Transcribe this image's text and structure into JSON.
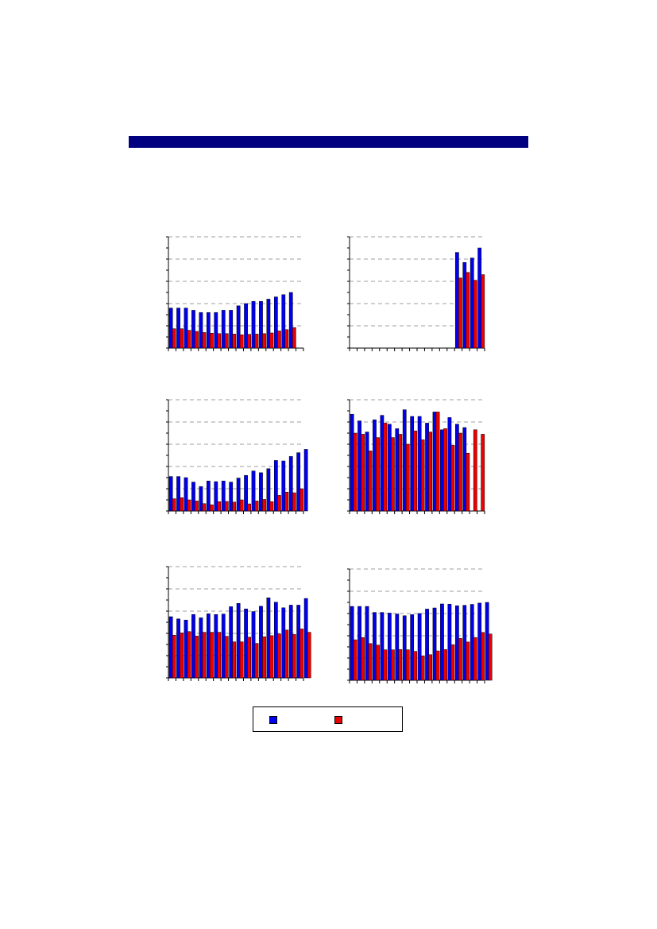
{
  "colors": {
    "series_1": "#0000ee",
    "series_2": "#ee0000",
    "title_bar": "#000080",
    "grid": "#808080"
  },
  "legend": {
    "items": [
      {
        "color": "#0000ee",
        "label": ""
      },
      {
        "color": "#ee0000",
        "label": ""
      }
    ]
  },
  "chart_data": [
    {
      "type": "bar",
      "grid": true,
      "ylim": [
        0,
        5
      ],
      "xticks": 19,
      "series": [
        {
          "values": [
            1.8,
            1.8,
            1.8,
            1.7,
            1.6,
            1.6,
            1.6,
            1.7,
            1.7,
            1.9,
            2.0,
            2.1,
            2.1,
            2.2,
            2.3,
            2.4,
            2.5
          ]
        },
        {
          "values": [
            0.87,
            0.87,
            0.8,
            0.75,
            0.7,
            0.67,
            0.65,
            0.65,
            0.63,
            0.6,
            0.62,
            0.63,
            0.65,
            0.68,
            0.77,
            0.83,
            0.92
          ]
        }
      ]
    },
    {
      "type": "bar",
      "grid": true,
      "ylim": [
        0,
        5
      ],
      "xticks": 19,
      "series": [
        {
          "values": [
            0,
            0,
            0,
            0,
            0,
            0,
            0,
            0,
            0,
            0,
            0,
            0,
            0,
            0,
            4.3,
            3.85,
            4.05,
            4.5
          ]
        },
        {
          "values": [
            0,
            0,
            0,
            0,
            0,
            0,
            0,
            0,
            0,
            0,
            0,
            0,
            0,
            0,
            3.15,
            3.4,
            3.05,
            3.3
          ]
        }
      ]
    },
    {
      "type": "bar",
      "grid": true,
      "ylim": [
        0,
        5
      ],
      "xticks": 19,
      "series": [
        {
          "values": [
            1.55,
            1.55,
            1.5,
            1.3,
            1.1,
            1.35,
            1.32,
            1.35,
            1.3,
            1.48,
            1.6,
            1.8,
            1.72,
            1.9,
            2.27,
            2.25,
            2.45,
            2.62,
            2.77
          ]
        },
        {
          "values": [
            0.55,
            0.6,
            0.5,
            0.45,
            0.33,
            0.28,
            0.42,
            0.43,
            0.4,
            0.5,
            0.32,
            0.45,
            0.52,
            0.42,
            0.7,
            0.85,
            0.82,
            1.0
          ]
        }
      ]
    },
    {
      "type": "bar",
      "grid": true,
      "ylim": [
        0,
        5
      ],
      "xticks": 19,
      "series": [
        {
          "values": [
            4.35,
            4.05,
            3.55,
            4.1,
            4.3,
            3.9,
            3.7,
            4.55,
            4.25,
            4.25,
            3.95,
            4.45,
            3.65,
            4.2,
            3.9,
            3.75
          ]
        },
        {
          "values": [
            3.5,
            3.45,
            2.7,
            3.3,
            3.95,
            3.3,
            3.45,
            3.0,
            3.6,
            3.2,
            3.55,
            4.45,
            3.7,
            2.95,
            3.5,
            2.6,
            3.65,
            3.45
          ]
        }
      ]
    },
    {
      "type": "bar",
      "grid": true,
      "ylim": [
        0,
        5
      ],
      "xticks": 19,
      "series": [
        {
          "values": [
            2.75,
            2.65,
            2.6,
            2.85,
            2.7,
            2.88,
            2.85,
            2.87,
            3.2,
            3.35,
            3.1,
            2.98,
            3.22,
            3.6,
            3.4,
            3.15,
            3.27,
            3.27,
            3.57
          ]
        },
        {
          "values": [
            1.92,
            2.02,
            2.08,
            1.88,
            2.05,
            2.05,
            2.05,
            1.87,
            1.62,
            1.62,
            1.83,
            1.55,
            1.85,
            1.9,
            1.98,
            2.15,
            1.95,
            2.2,
            2.05
          ]
        }
      ]
    },
    {
      "type": "bar",
      "grid": true,
      "ylim": [
        0,
        5
      ],
      "xticks": 19,
      "series": [
        {
          "values": [
            3.32,
            3.32,
            3.32,
            3.05,
            3.05,
            3.02,
            2.98,
            2.9,
            2.95,
            3.0,
            3.2,
            3.25,
            3.43,
            3.42,
            3.35,
            3.37,
            3.41,
            3.47,
            3.5
          ]
        },
        {
          "values": [
            1.82,
            1.92,
            1.65,
            1.58,
            1.37,
            1.37,
            1.38,
            1.37,
            1.3,
            1.1,
            1.15,
            1.32,
            1.38,
            1.6,
            1.88,
            1.72,
            1.92,
            2.15,
            2.08
          ]
        }
      ]
    }
  ]
}
